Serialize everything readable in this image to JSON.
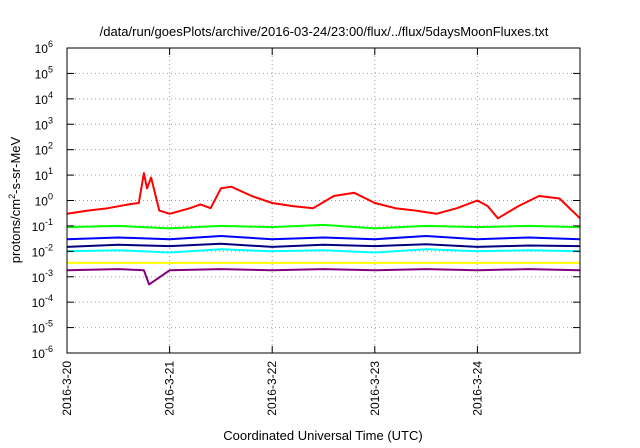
{
  "chart_data": {
    "type": "line",
    "title": "/data/run/goesPlots/archive/2016-03-24/23:00/flux/../flux/5daysMoonFluxes.txt",
    "xlabel": "Coordinated Universal Time (UTC)",
    "ylabel": {
      "prefix": "protons/cm",
      "superscript": "2",
      "suffix": "-s-sr-MeV"
    },
    "yscale": "log",
    "ylim": [
      1e-06,
      1000000.0
    ],
    "xlim_days": [
      "2016-3-20",
      "2016-3-25"
    ],
    "grid": true,
    "legend": "none",
    "x_ticks": [
      "2016-3-20",
      "2016-3-21",
      "2016-3-22",
      "2016-3-23",
      "2016-3-24"
    ],
    "y_ticks": [
      {
        "base": "10",
        "exp": "-6"
      },
      {
        "base": "10",
        "exp": "-5"
      },
      {
        "base": "10",
        "exp": "-4"
      },
      {
        "base": "10",
        "exp": "-3"
      },
      {
        "base": "10",
        "exp": "-2"
      },
      {
        "base": "10",
        "exp": "-1"
      },
      {
        "base": "10",
        "exp": "0"
      },
      {
        "base": "10",
        "exp": "1"
      },
      {
        "base": "10",
        "exp": "2"
      },
      {
        "base": "10",
        "exp": "3"
      },
      {
        "base": "10",
        "exp": "4"
      },
      {
        "base": "10",
        "exp": "5"
      },
      {
        "base": "10",
        "exp": "6"
      }
    ],
    "series": [
      {
        "color": "#ff0000",
        "x_days": [
          0,
          0.2,
          0.4,
          0.6,
          0.7,
          0.75,
          0.78,
          0.82,
          0.9,
          1.0,
          1.2,
          1.3,
          1.4,
          1.5,
          1.6,
          1.8,
          2.0,
          2.2,
          2.4,
          2.6,
          2.8,
          3.0,
          3.2,
          3.4,
          3.6,
          3.8,
          4.0,
          4.1,
          4.2,
          4.4,
          4.6,
          4.8,
          5.0
        ],
        "values": [
          0.3,
          0.4,
          0.5,
          0.7,
          0.8,
          12,
          3,
          8,
          0.4,
          0.3,
          0.5,
          0.7,
          0.5,
          3.0,
          3.5,
          1.5,
          0.8,
          0.6,
          0.5,
          1.5,
          2.0,
          0.8,
          0.5,
          0.4,
          0.3,
          0.5,
          1.0,
          0.6,
          0.2,
          0.6,
          1.5,
          1.2,
          0.2
        ]
      },
      {
        "color": "#00ff00",
        "x_days": [
          0,
          0.5,
          1.0,
          1.5,
          2.0,
          2.5,
          3.0,
          3.5,
          4.0,
          4.5,
          5.0
        ],
        "values": [
          0.09,
          0.1,
          0.08,
          0.1,
          0.09,
          0.11,
          0.08,
          0.1,
          0.09,
          0.1,
          0.09
        ]
      },
      {
        "color": "#0000ff",
        "x_days": [
          0,
          0.5,
          1.0,
          1.5,
          2.0,
          2.5,
          3.0,
          3.5,
          4.0,
          4.5,
          5.0
        ],
        "values": [
          0.03,
          0.035,
          0.03,
          0.04,
          0.03,
          0.035,
          0.03,
          0.04,
          0.03,
          0.035,
          0.03
        ]
      },
      {
        "color": "#000080",
        "x_days": [
          0,
          0.5,
          1.0,
          1.5,
          2.0,
          2.5,
          3.0,
          3.5,
          4.0,
          4.5,
          5.0
        ],
        "values": [
          0.015,
          0.018,
          0.016,
          0.02,
          0.015,
          0.018,
          0.016,
          0.019,
          0.015,
          0.017,
          0.016
        ]
      },
      {
        "color": "#00ffff",
        "x_days": [
          0,
          0.5,
          1.0,
          1.5,
          2.0,
          2.5,
          3.0,
          3.5,
          4.0,
          4.5,
          5.0
        ],
        "values": [
          0.01,
          0.011,
          0.009,
          0.012,
          0.01,
          0.011,
          0.009,
          0.012,
          0.01,
          0.011,
          0.01
        ]
      },
      {
        "color": "#ffff00",
        "x_days": [
          0,
          0.5,
          1.0,
          1.5,
          2.0,
          2.5,
          3.0,
          3.5,
          4.0,
          4.5,
          5.0
        ],
        "values": [
          0.0035,
          0.0035,
          0.0035,
          0.0035,
          0.0035,
          0.0035,
          0.0035,
          0.0035,
          0.0035,
          0.0035,
          0.0035
        ]
      },
      {
        "color": "#800080",
        "x_days": [
          0,
          0.5,
          0.75,
          0.8,
          1.0,
          1.5,
          2.0,
          2.5,
          3.0,
          3.5,
          4.0,
          4.5,
          5.0
        ],
        "values": [
          0.0018,
          0.002,
          0.0018,
          0.0005,
          0.0018,
          0.002,
          0.0018,
          0.002,
          0.0018,
          0.002,
          0.0018,
          0.002,
          0.0018
        ]
      }
    ]
  }
}
